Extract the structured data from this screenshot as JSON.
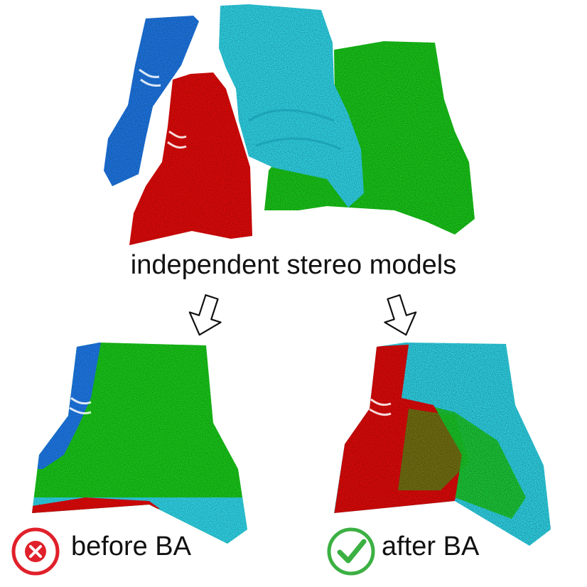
{
  "captions": {
    "top": "independent stereo models",
    "before": "before BA",
    "after": "after BA"
  },
  "icons": {
    "before": "cross-circle-icon",
    "after": "check-circle-icon",
    "arrows": "hollow-down-arrow-icon"
  },
  "colors": {
    "model_blue": "#1e78e6",
    "model_red": "#e10a0a",
    "model_cyan": "#2fd3e6",
    "model_green": "#19c519",
    "cross": "#e0202a",
    "check": "#3cb043"
  }
}
